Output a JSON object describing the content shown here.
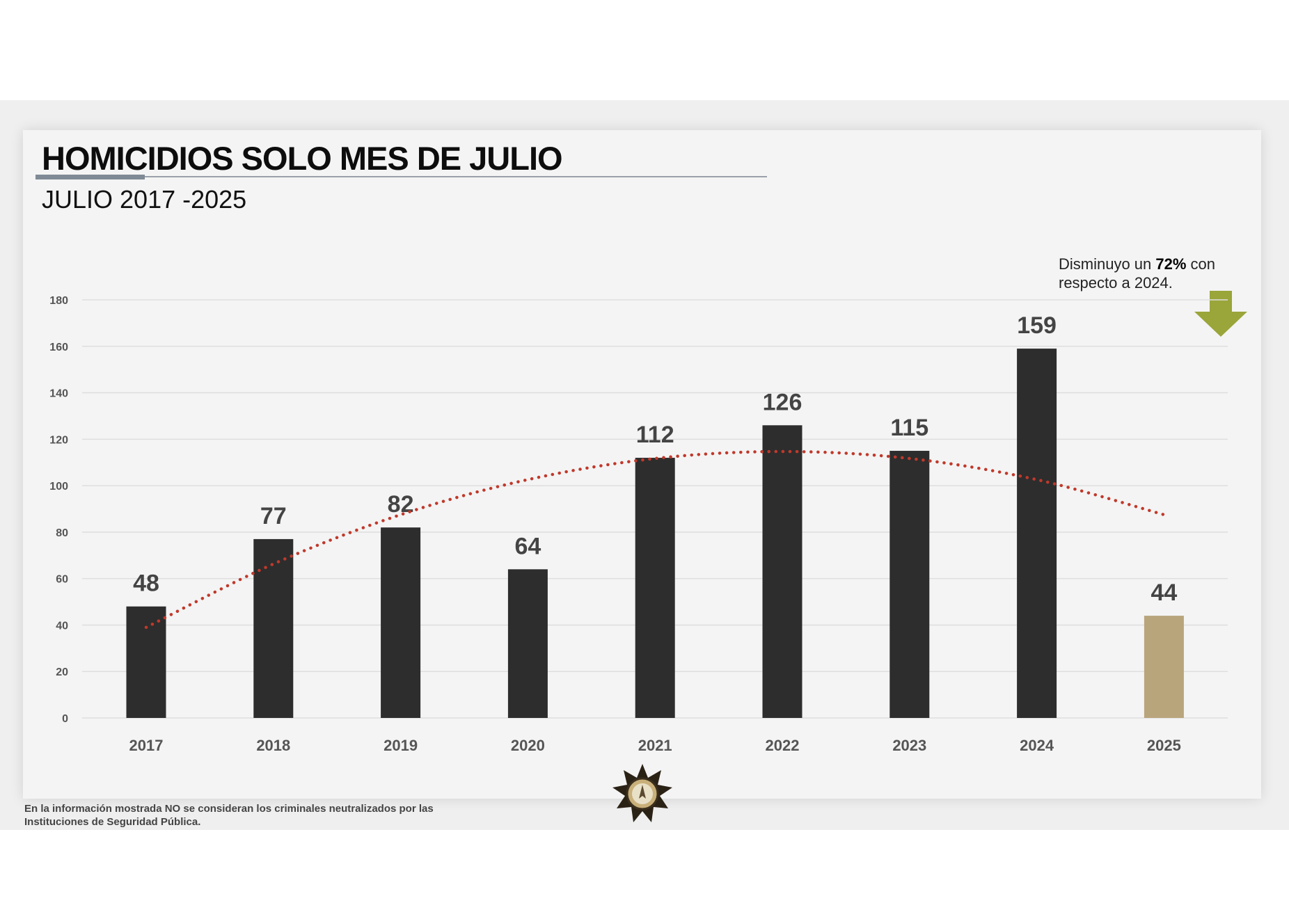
{
  "header": {
    "title": "HOMICIDIOS SOLO MES DE JULIO",
    "subtitle": "JULIO 2017 -2025"
  },
  "annotation": {
    "text_before": "Disminuyo un ",
    "highlight": "72%",
    "text_after": " con",
    "line2": "respecto a 2024.",
    "arrow_color": "#9aa53a",
    "icon": "down-arrow-icon"
  },
  "footnote": {
    "line1": "En la información mostrada NO se consideran los criminales neutralizados por las",
    "line2": "Instituciones de Seguridad Pública."
  },
  "chart_data": {
    "type": "bar",
    "title": "HOMICIDIOS SOLO MES DE JULIO",
    "subtitle": "JULIO 2017 -2025",
    "categories": [
      "2017",
      "2018",
      "2019",
      "2020",
      "2021",
      "2022",
      "2023",
      "2024",
      "2025"
    ],
    "values": [
      48,
      77,
      82,
      64,
      112,
      126,
      115,
      159,
      44
    ],
    "value_labels": [
      "48",
      "77",
      "82",
      "64",
      "112",
      "126",
      "115",
      "159",
      "44"
    ],
    "bar_colors": [
      "#2d2d2d",
      "#2d2d2d",
      "#2d2d2d",
      "#2d2d2d",
      "#2d2d2d",
      "#2d2d2d",
      "#2d2d2d",
      "#2d2d2d",
      "#b9a57c"
    ],
    "ylim": [
      0,
      180
    ],
    "yticks": [
      0,
      20,
      40,
      60,
      80,
      100,
      120,
      140,
      160,
      180
    ],
    "ytick_labels": [
      "0",
      "20",
      "40",
      "60",
      "80",
      "100",
      "120",
      "140",
      "160",
      "180"
    ],
    "grid": true,
    "xlabel": "",
    "ylabel": "",
    "trendline": {
      "type": "polynomial-2",
      "color": "#c0392b",
      "style": "dotted",
      "values": [
        39,
        66.3,
        87.5,
        102.6,
        111.7,
        114.7,
        111.7,
        102.6,
        87.5
      ]
    }
  }
}
